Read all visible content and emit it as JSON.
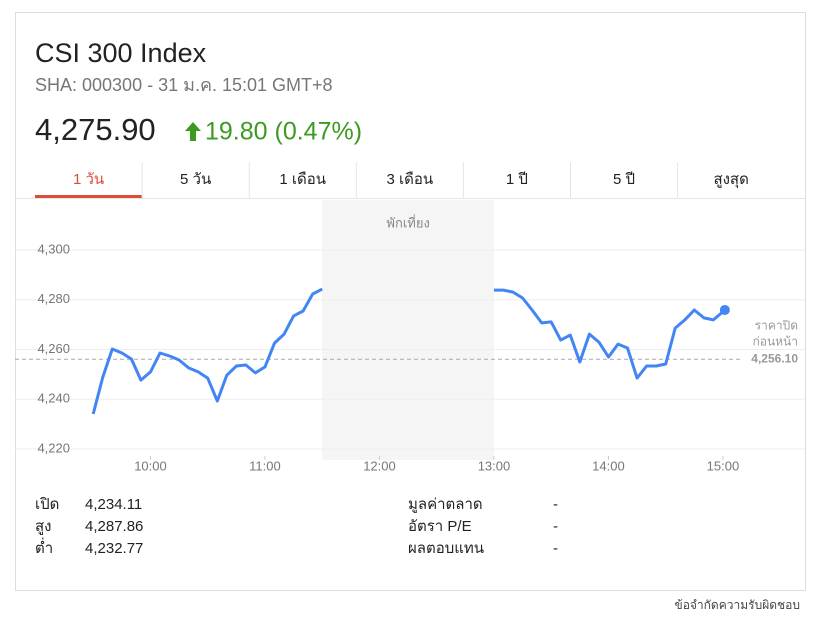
{
  "header": {
    "title": "CSI 300 Index",
    "subtitle": "SHA: 000300 - 31 ม.ค. 15:01 GMT+8",
    "price": "4,275.90",
    "change": "19.80 (0.47%)"
  },
  "tabs": [
    "1 วัน",
    "5 วัน",
    "1 เดือน",
    "3 เดือน",
    "1 ปี",
    "5 ปี",
    "สูงสุด"
  ],
  "active_tab": 0,
  "chart_data": {
    "type": "line",
    "color": "#4285f4",
    "x": [
      "09:30",
      "09:35",
      "09:40",
      "09:45",
      "09:50",
      "09:55",
      "10:00",
      "10:05",
      "10:10",
      "10:15",
      "10:20",
      "10:25",
      "10:30",
      "10:35",
      "10:40",
      "10:45",
      "10:50",
      "10:55",
      "11:00",
      "11:05",
      "11:10",
      "11:15",
      "11:20",
      "11:25",
      "11:30",
      "12:00",
      "13:00",
      "13:05",
      "13:10",
      "13:15",
      "13:20",
      "13:25",
      "13:30",
      "13:35",
      "13:40",
      "13:45",
      "13:50",
      "13:55",
      "14:00",
      "14:05",
      "14:10",
      "14:15",
      "14:20",
      "14:25",
      "14:30",
      "14:35",
      "14:40",
      "14:45",
      "14:50",
      "14:55",
      "15:01"
    ],
    "values": [
      4234.1,
      4248.9,
      4260.2,
      4258.6,
      4256.2,
      4247.7,
      4251,
      4258.6,
      4257.4,
      4255.8,
      4252.6,
      4251,
      4248.5,
      4239.3,
      4249.7,
      4253.4,
      4253.8,
      4250.6,
      4253,
      4262.6,
      4266.2,
      4273.5,
      4275.5,
      4282.3,
      4284.3,
      null,
      4283.9,
      4283.9,
      4283.1,
      4280.7,
      4275.9,
      4270.7,
      4271.1,
      4263.8,
      4265.8,
      4255,
      4266.2,
      4263,
      4257,
      4262.2,
      4260.6,
      4248.5,
      4253.4,
      4253.4,
      4254.2,
      4268.6,
      4271.9,
      4275.9,
      4272.7,
      4271.9,
      4275.9
    ],
    "xlim": [
      "08:49",
      "15:43"
    ],
    "xticks": [
      "10:00",
      "11:00",
      "12:00",
      "13:00",
      "14:00",
      "15:00"
    ],
    "ylim": [
      4215.6,
      4320.1
    ],
    "yticks": [
      {
        "value": 4220,
        "label": "4,220"
      },
      {
        "value": 4240,
        "label": "4,240"
      },
      {
        "value": 4260,
        "label": "4,260"
      },
      {
        "value": 4280,
        "label": "4,280"
      },
      {
        "value": 4300,
        "label": "4,300"
      }
    ],
    "grid": true,
    "break": {
      "label": "พักเที่ยง",
      "from": "11:30",
      "to": "13:00"
    },
    "reference": {
      "label": [
        "ราคาปิด",
        "ก่อนหน้า"
      ],
      "value": 4256.1,
      "value_label": "4,256.10"
    }
  },
  "stats": {
    "left": [
      [
        "เปิด",
        "4,234.11"
      ],
      [
        "สูง",
        "4,287.86"
      ],
      [
        "ต่ำ",
        "4,232.77"
      ]
    ],
    "right": [
      [
        "มูลค่าตลาด",
        "-"
      ],
      [
        "อัตรา P/E",
        "-"
      ],
      [
        "ผลตอบแทน",
        "-"
      ]
    ]
  },
  "footer": "ข้อจำกัดความรับผิดชอบ"
}
